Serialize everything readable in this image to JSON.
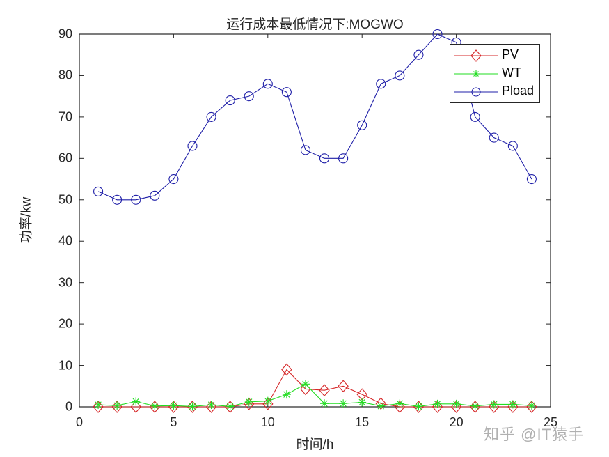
{
  "chart_data": {
    "type": "line",
    "title": "运行成本最低情况下:MOGWO",
    "xlabel": "时间/h",
    "ylabel": "功率/kw",
    "xlim": [
      0,
      25
    ],
    "ylim": [
      0,
      90
    ],
    "xticks": [
      0,
      5,
      10,
      15,
      20,
      25
    ],
    "yticks": [
      0,
      10,
      20,
      30,
      40,
      50,
      60,
      70,
      80,
      90
    ],
    "grid": false,
    "legend_position": "upper right",
    "x": [
      1,
      2,
      3,
      4,
      5,
      6,
      7,
      8,
      9,
      10,
      11,
      12,
      13,
      14,
      15,
      16,
      17,
      18,
      19,
      20,
      21,
      22,
      23,
      24
    ],
    "series": [
      {
        "name": "PV",
        "color": "#d62728",
        "marker": "diamond",
        "values": [
          0,
          0,
          0,
          0,
          0,
          0,
          0,
          0,
          0.7,
          0.7,
          9,
          4.3,
          4,
          5,
          3,
          0.8,
          0,
          0,
          0,
          0,
          0,
          0,
          0,
          0
        ]
      },
      {
        "name": "WT",
        "color": "#22dd22",
        "marker": "asterisk",
        "values": [
          0.5,
          0.3,
          1.3,
          0.2,
          0.3,
          0.1,
          0.5,
          0.1,
          1.2,
          1.4,
          3,
          5.5,
          0.8,
          0.8,
          1.1,
          0.2,
          0.8,
          0.1,
          0.7,
          0.7,
          0.2,
          0.6,
          0.6,
          0.3
        ]
      },
      {
        "name": "Pload",
        "color": "#1f1fa8",
        "marker": "circle",
        "values": [
          52,
          50,
          50,
          51,
          55,
          63,
          70,
          74,
          75,
          78,
          76,
          62,
          60,
          60,
          68,
          78,
          80,
          85,
          90,
          88,
          70,
          65,
          63,
          55
        ]
      }
    ]
  },
  "watermark": "知乎 @IT猿手"
}
